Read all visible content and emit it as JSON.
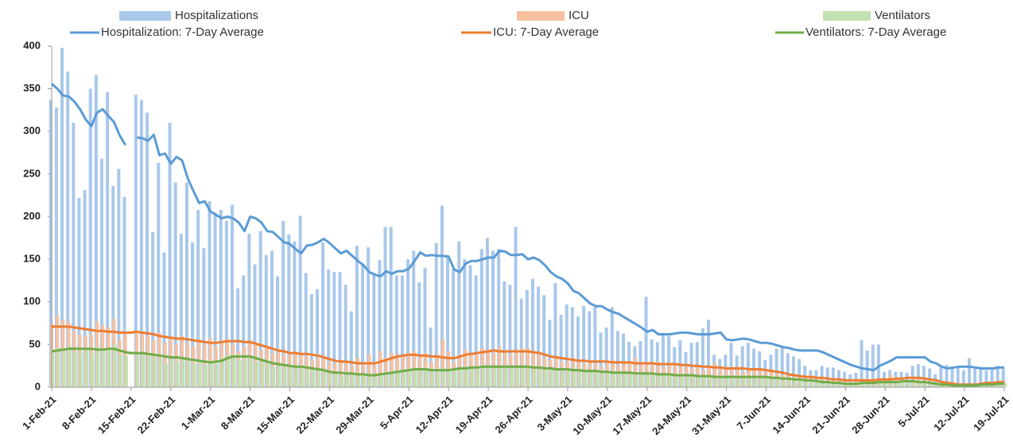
{
  "chart_data": {
    "type": "combo",
    "categories": [
      "1-Feb-21",
      null,
      null,
      null,
      null,
      null,
      null,
      "8-Feb-21",
      null,
      null,
      null,
      null,
      null,
      null,
      "15-Feb-21",
      null,
      null,
      null,
      null,
      null,
      null,
      "22-Feb-21",
      null,
      null,
      null,
      null,
      null,
      null,
      "1-Mar-21",
      null,
      null,
      null,
      null,
      null,
      null,
      "8-Mar-21",
      null,
      null,
      null,
      null,
      null,
      null,
      "15-Mar-21",
      null,
      null,
      null,
      null,
      null,
      null,
      "22-Mar-21",
      null,
      null,
      null,
      null,
      null,
      null,
      "29-Mar-21",
      null,
      null,
      null,
      null,
      null,
      null,
      "5-Apr-21",
      null,
      null,
      null,
      null,
      null,
      null,
      "12-Apr-21",
      null,
      null,
      null,
      null,
      null,
      null,
      "19-Apr-21",
      null,
      null,
      null,
      null,
      null,
      null,
      "26-Apr-21",
      null,
      null,
      null,
      null,
      null,
      null,
      "3-May-21",
      null,
      null,
      null,
      null,
      null,
      null,
      "10-May-21",
      null,
      null,
      null,
      null,
      null,
      null,
      "17-May-21",
      null,
      null,
      null,
      null,
      null,
      null,
      "24-May-21",
      null,
      null,
      null,
      null,
      null,
      null,
      "31-May-21",
      null,
      null,
      null,
      null,
      null,
      null,
      "7-Jun-21",
      null,
      null,
      null,
      null,
      null,
      null,
      "14-Jun-21",
      null,
      null,
      null,
      null,
      null,
      null,
      "21-Jun-21",
      null,
      null,
      null,
      null,
      null,
      null,
      "28-Jun-21",
      null,
      null,
      null,
      null,
      null,
      null,
      "5-Jul-21",
      null,
      null,
      null,
      null,
      null,
      null,
      "12-Jul-21",
      null,
      null,
      null,
      null,
      null,
      null,
      "19-Jul-21"
    ],
    "ylim": [
      0,
      400
    ],
    "yticks": [
      0,
      50,
      100,
      150,
      200,
      250,
      300,
      350,
      400
    ],
    "grid": false,
    "legend": "top",
    "series": [
      {
        "name": "Hospitalizations",
        "kind": "bar",
        "color": "#a9c8ea",
        "values": [
          337,
          328,
          398,
          370,
          310,
          222,
          231,
          350,
          366,
          268,
          346,
          236,
          256,
          223,
          null,
          343,
          337,
          322,
          182,
          263,
          158,
          310,
          240,
          180,
          240,
          170,
          208,
          163,
          218,
          205,
          208,
          195,
          214,
          116,
          131,
          180,
          144,
          183,
          155,
          160,
          130,
          195,
          179,
          171,
          201,
          134,
          109,
          115,
          170,
          138,
          135,
          135,
          120,
          89,
          166,
          143,
          164,
          132,
          149,
          188,
          188,
          131,
          131,
          150,
          160,
          123,
          140,
          70,
          169,
          213,
          155,
          139,
          171,
          150,
          143,
          131,
          162,
          175,
          160,
          162,
          124,
          120,
          188,
          104,
          114,
          127,
          118,
          108,
          79,
          122,
          85,
          97,
          94,
          83,
          95,
          89,
          94,
          64,
          70,
          94,
          66,
          63,
          53,
          48,
          54,
          106,
          56,
          53,
          62,
          60,
          47,
          55,
          41,
          52,
          53,
          69,
          79,
          38,
          33,
          38,
          52,
          37,
          48,
          52,
          45,
          42,
          32,
          38,
          45,
          48,
          40,
          36,
          33,
          25,
          20,
          20,
          25,
          23,
          23,
          20,
          18,
          15,
          17,
          55,
          43,
          50,
          50,
          18,
          20,
          18,
          18,
          17,
          25,
          27,
          25,
          22,
          15,
          25,
          26,
          22,
          24,
          20,
          34,
          24,
          22,
          20,
          22,
          25,
          22
        ]
      },
      {
        "name": "ICU",
        "kind": "bar",
        "color": "#f7c1a0",
        "values": [
          75,
          84,
          79,
          77,
          66,
          62,
          60,
          62,
          77,
          73,
          70,
          80,
          55,
          62,
          null,
          66,
          62,
          60,
          55,
          64,
          52,
          58,
          50,
          60,
          52,
          48,
          56,
          50,
          58,
          48,
          54,
          56,
          50,
          42,
          48,
          55,
          52,
          44,
          46,
          40,
          42,
          38,
          38,
          42,
          40,
          36,
          32,
          34,
          36,
          30,
          28,
          32,
          30,
          26,
          34,
          26,
          38,
          26,
          42,
          34,
          40,
          38,
          36,
          40,
          42,
          36,
          40,
          30,
          38,
          56,
          42,
          30,
          38,
          44,
          40,
          38,
          46,
          44,
          40,
          48,
          42,
          38,
          44,
          46,
          46,
          40,
          38,
          34,
          32,
          36,
          30,
          30,
          34,
          32,
          28,
          30,
          28,
          24,
          28,
          32,
          26,
          30,
          28,
          34,
          26,
          28,
          26,
          30,
          24,
          28,
          26,
          24,
          24,
          22,
          26,
          20,
          24,
          28,
          22,
          22,
          20,
          24,
          18,
          22,
          20,
          20,
          18,
          20,
          16,
          14,
          16,
          12,
          12,
          12,
          14,
          10,
          10,
          8,
          10,
          8,
          8,
          6,
          8,
          10,
          8,
          8,
          10,
          10,
          14,
          12,
          10,
          8,
          12,
          10,
          10,
          8,
          6,
          4,
          4,
          2,
          2,
          2,
          4,
          4,
          6,
          6,
          4,
          6,
          6
        ]
      },
      {
        "name": "Ventilators",
        "kind": "bar",
        "color": "#c2e0b0",
        "values": [
          44,
          46,
          45,
          48,
          42,
          40,
          46,
          40,
          48,
          44,
          46,
          50,
          38,
          36,
          null,
          38,
          42,
          40,
          36,
          34,
          28,
          34,
          30,
          36,
          32,
          28,
          30,
          26,
          30,
          28,
          34,
          38,
          36,
          32,
          34,
          36,
          30,
          30,
          28,
          24,
          26,
          24,
          24,
          22,
          26,
          20,
          20,
          22,
          18,
          16,
          18,
          14,
          16,
          14,
          16,
          14,
          14,
          12,
          16,
          18,
          16,
          20,
          20,
          22,
          20,
          20,
          22,
          18,
          20,
          22,
          20,
          22,
          24,
          22,
          24,
          22,
          26,
          26,
          24,
          22,
          26,
          24,
          22,
          24,
          24,
          22,
          24,
          20,
          22,
          20,
          20,
          20,
          22,
          18,
          20,
          18,
          20,
          16,
          18,
          16,
          18,
          16,
          18,
          14,
          16,
          16,
          14,
          16,
          14,
          16,
          14,
          12,
          14,
          12,
          14,
          12,
          14,
          12,
          12,
          12,
          10,
          12,
          14,
          12,
          10,
          12,
          12,
          10,
          12,
          8,
          10,
          8,
          8,
          8,
          8,
          6,
          6,
          6,
          4,
          4,
          4,
          4,
          4,
          6,
          4,
          6,
          6,
          6,
          8,
          6,
          8,
          6,
          6,
          6,
          6,
          4,
          4,
          2,
          2,
          2,
          2,
          2,
          2,
          2,
          4,
          2,
          4,
          4,
          4
        ]
      },
      {
        "name": "Hospitalization: 7-Day Average",
        "kind": "line",
        "color": "#5b9bd5",
        "values": [
          356,
          350,
          342,
          341,
          335,
          326,
          314,
          306,
          322,
          326,
          318,
          311,
          295,
          284,
          null,
          293,
          292,
          289,
          296,
          272,
          274,
          262,
          270,
          266,
          245,
          230,
          216,
          218,
          206,
          202,
          198,
          200,
          198,
          193,
          183,
          200,
          198,
          193,
          183,
          182,
          176,
          170,
          168,
          162,
          157,
          166,
          167,
          170,
          174,
          169,
          163,
          157,
          160,
          154,
          148,
          143,
          135,
          132,
          130,
          136,
          133,
          136,
          136,
          139,
          148,
          158,
          154,
          155,
          154,
          154,
          153,
          138,
          135,
          145,
          148,
          148,
          150,
          152,
          152,
          160,
          159,
          155,
          155,
          156,
          150,
          152,
          149,
          143,
          135,
          130,
          127,
          122,
          113,
          110,
          104,
          98,
          95,
          95,
          91,
          88,
          86,
          82,
          78,
          74,
          70,
          65,
          67,
          62,
          62,
          62,
          63,
          64,
          64,
          63,
          62,
          62,
          62,
          63,
          64,
          56,
          55,
          56,
          57,
          56,
          54,
          52,
          52,
          51,
          49,
          47,
          46,
          44,
          43,
          43,
          43,
          43,
          41,
          38,
          35,
          32,
          29,
          26,
          24,
          22,
          21,
          20,
          25,
          28,
          31,
          35,
          35,
          35,
          35,
          35,
          35,
          30,
          28,
          24,
          22,
          23,
          24,
          24,
          24,
          23,
          22,
          22,
          22,
          23,
          23
        ]
      },
      {
        "name": "ICU: 7-Day Average",
        "kind": "line",
        "color": "#ed7d31",
        "values": [
          71,
          71,
          71,
          71,
          70,
          69,
          68,
          67,
          66,
          66,
          65,
          65,
          64,
          64,
          64,
          65,
          64,
          63,
          62,
          60,
          59,
          58,
          57,
          57,
          56,
          55,
          54,
          53,
          52,
          52,
          53,
          54,
          54,
          54,
          53,
          53,
          51,
          49,
          47,
          45,
          43,
          42,
          40,
          40,
          39,
          39,
          38,
          37,
          35,
          33,
          31,
          30,
          30,
          29,
          28,
          28,
          28,
          28,
          30,
          32,
          34,
          36,
          37,
          38,
          38,
          37,
          37,
          36,
          36,
          35,
          34,
          34,
          36,
          38,
          39,
          40,
          41,
          42,
          43,
          42,
          42,
          42,
          42,
          42,
          42,
          41,
          40,
          38,
          36,
          35,
          34,
          33,
          32,
          31,
          31,
          30,
          30,
          30,
          30,
          29,
          29,
          29,
          29,
          28,
          28,
          28,
          28,
          27,
          27,
          27,
          27,
          26,
          26,
          25,
          25,
          24,
          24,
          23,
          23,
          22,
          22,
          22,
          22,
          21,
          21,
          21,
          20,
          19,
          18,
          17,
          15,
          14,
          13,
          12,
          12,
          11,
          11,
          10,
          9,
          9,
          8,
          8,
          8,
          8,
          8,
          8,
          9,
          9,
          9,
          10,
          10,
          11,
          11,
          11,
          10,
          9,
          8,
          6,
          5,
          4,
          3,
          3,
          3,
          3,
          4,
          5,
          5,
          6,
          6
        ]
      },
      {
        "name": "Ventilators: 7-Day Average",
        "kind": "line",
        "color": "#70ad47",
        "values": [
          42,
          43,
          44,
          45,
          45,
          45,
          45,
          45,
          44,
          44,
          45,
          45,
          43,
          41,
          40,
          40,
          40,
          39,
          38,
          37,
          36,
          35,
          35,
          34,
          33,
          32,
          31,
          30,
          29,
          30,
          31,
          34,
          36,
          36,
          36,
          36,
          34,
          32,
          30,
          28,
          27,
          26,
          25,
          24,
          24,
          23,
          22,
          21,
          20,
          18,
          17,
          17,
          16,
          16,
          15,
          15,
          14,
          14,
          15,
          16,
          17,
          18,
          19,
          20,
          21,
          21,
          21,
          20,
          20,
          20,
          20,
          21,
          22,
          22,
          23,
          23,
          24,
          24,
          24,
          24,
          24,
          24,
          24,
          24,
          24,
          23,
          23,
          22,
          22,
          21,
          21,
          21,
          20,
          20,
          19,
          19,
          19,
          18,
          18,
          17,
          17,
          17,
          17,
          16,
          16,
          16,
          16,
          15,
          15,
          15,
          14,
          14,
          14,
          14,
          13,
          13,
          13,
          12,
          12,
          12,
          12,
          12,
          12,
          12,
          12,
          12,
          12,
          11,
          11,
          10,
          10,
          9,
          9,
          8,
          8,
          7,
          6,
          6,
          5,
          5,
          4,
          4,
          4,
          5,
          5,
          5,
          6,
          6,
          6,
          6,
          7,
          7,
          7,
          6,
          6,
          5,
          4,
          3,
          3,
          2,
          2,
          2,
          2,
          2,
          3,
          3,
          3,
          4,
          4
        ]
      }
    ]
  }
}
